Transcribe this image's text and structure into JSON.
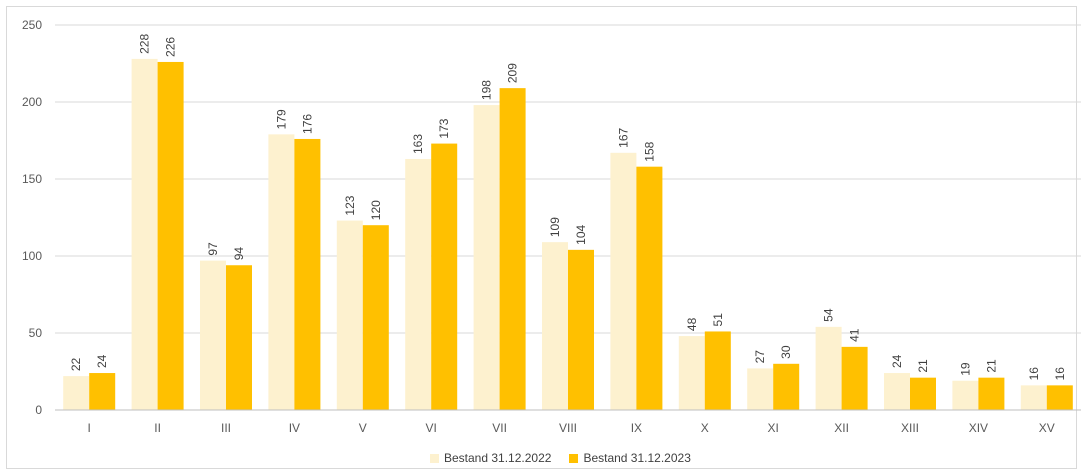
{
  "chart_data": {
    "type": "bar",
    "title": "",
    "xlabel": "",
    "ylabel": "",
    "categories": [
      "I",
      "II",
      "III",
      "IV",
      "V",
      "VI",
      "VII",
      "VIII",
      "IX",
      "X",
      "XI",
      "XII",
      "XIII",
      "XIV",
      "XV"
    ],
    "series": [
      {
        "name": "Bestand 31.12.2022",
        "color": "#fdf1cf",
        "values": [
          22,
          228,
          97,
          179,
          123,
          163,
          198,
          109,
          167,
          48,
          27,
          54,
          24,
          19,
          16
        ]
      },
      {
        "name": "Bestand 31.12.2023",
        "color": "#ffc000",
        "values": [
          24,
          226,
          94,
          176,
          120,
          173,
          209,
          104,
          158,
          51,
          30,
          41,
          21,
          21,
          16
        ]
      }
    ],
    "ylim": [
      0,
      250
    ],
    "yticks": [
      0,
      50,
      100,
      150,
      200,
      250
    ],
    "grid": true,
    "legend_position": "bottom",
    "data_labels": true
  }
}
